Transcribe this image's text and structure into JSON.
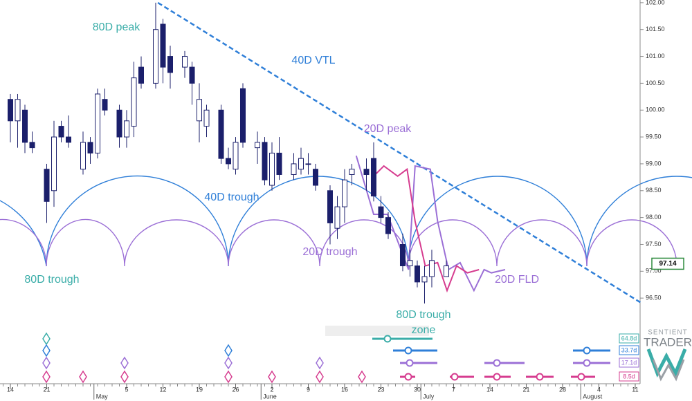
{
  "chart_data": {
    "type": "candlestick",
    "x": [
      0,
      1,
      2,
      3,
      5,
      6,
      7,
      8,
      10,
      11,
      12,
      13,
      15,
      16,
      17,
      18,
      20,
      21,
      22,
      24,
      25,
      26,
      27,
      29,
      30,
      31,
      32,
      34,
      35,
      36,
      37,
      39,
      40,
      41,
      42,
      44,
      45,
      46,
      47,
      49,
      50,
      51,
      52,
      54,
      55,
      56,
      57,
      58,
      60
    ],
    "open": [
      100.2,
      99.8,
      100.0,
      99.4,
      98.9,
      98.5,
      99.7,
      99.5,
      98.9,
      99.4,
      99.2,
      100.2,
      100.0,
      99.5,
      99.7,
      100.8,
      100.5,
      101.6,
      101.0,
      100.8,
      100.8,
      99.8,
      99.7,
      100.0,
      99.1,
      98.9,
      100.4,
      99.3,
      99.4,
      98.6,
      99.2,
      98.8,
      98.9,
      99.0,
      98.9,
      98.5,
      97.8,
      98.2,
      98.8,
      98.9,
      99.1,
      98.2,
      98.0,
      97.5,
      97.1,
      97.1,
      96.8,
      96.9,
      96.9
    ],
    "high": [
      100.3,
      100.3,
      100.1,
      99.6,
      99.0,
      99.8,
      99.8,
      99.9,
      99.6,
      99.5,
      100.4,
      100.4,
      100.1,
      100.0,
      100.9,
      101.0,
      102.0,
      101.7,
      101.2,
      101.1,
      100.9,
      100.5,
      100.1,
      100.1,
      99.3,
      99.5,
      100.5,
      99.6,
      99.5,
      99.4,
      99.5,
      99.2,
      99.3,
      99.2,
      99.0,
      98.6,
      98.4,
      98.9,
      99.0,
      99.1,
      99.4,
      98.4,
      98.1,
      97.7,
      97.4,
      97.2,
      97.1,
      97.4,
      97.2
    ],
    "low": [
      99.4,
      99.3,
      99.2,
      99.2,
      97.9,
      98.2,
      99.4,
      99.3,
      98.8,
      99.0,
      99.1,
      99.9,
      99.3,
      99.3,
      99.5,
      100.4,
      100.4,
      100.5,
      100.4,
      100.6,
      100.1,
      99.4,
      99.5,
      99.0,
      98.9,
      98.8,
      99.3,
      99.0,
      98.6,
      98.5,
      98.7,
      98.7,
      98.8,
      98.8,
      98.5,
      97.5,
      97.6,
      97.9,
      98.6,
      98.5,
      98.3,
      97.9,
      97.6,
      97.0,
      96.9,
      96.7,
      96.4,
      96.7,
      96.9
    ],
    "close": [
      99.8,
      100.2,
      99.4,
      99.3,
      98.3,
      99.5,
      99.5,
      99.4,
      99.4,
      99.2,
      100.3,
      100.0,
      99.5,
      99.8,
      100.6,
      100.5,
      101.5,
      100.8,
      100.7,
      101.0,
      100.5,
      100.2,
      100.0,
      99.1,
      99.0,
      99.4,
      99.4,
      99.4,
      98.7,
      99.2,
      98.8,
      99.0,
      99.1,
      99.0,
      98.6,
      97.9,
      98.2,
      98.7,
      98.9,
      98.8,
      98.4,
      98.0,
      97.7,
      97.1,
      97.2,
      96.8,
      96.9,
      97.2,
      97.1
    ],
    "up_color": "#ffffff",
    "down_color": "#1b1f6b",
    "lines": [
      {
        "color": "#2f7fd8",
        "dashed": true,
        "x": [
          20.3,
          86.7
        ],
        "values": [
          102.0,
          96.42
        ]
      },
      {
        "color": "#9b6fd6",
        "dashed": false,
        "x": [
          47.6,
          50,
          51.9,
          54.8,
          55.7,
          57.8,
          58.8,
          60.3,
          61.9,
          63.8,
          65.2,
          66.2,
          68.1
        ],
        "values": [
          99.15,
          98.06,
          98.06,
          97.03,
          98.96,
          98.9,
          97.93,
          97.03,
          97.16,
          96.64,
          97.03,
          96.97,
          97.03
        ]
      },
      {
        "color": "#d63c8f",
        "dashed": false,
        "x": [
          50,
          51.4,
          53.3,
          54.6,
          55.7,
          57.1,
          58.8,
          60.1,
          61.4,
          62.9,
          64.5
        ],
        "values": [
          98.77,
          98.96,
          98.77,
          98.9,
          97.93,
          97.1,
          97.16,
          96.64,
          97.1,
          96.97,
          97.03
        ]
      }
    ],
    "last_price": 97.14,
    "xlim": [
      -1.43,
      86.67
    ],
    "ylim": [
      96.0,
      102.05
    ],
    "yticks": [
      {
        "value": 96.5,
        "label": "96.50"
      },
      {
        "value": 97,
        "label": "97.00"
      },
      {
        "value": 97.5,
        "label": "97.50"
      },
      {
        "value": 98,
        "label": "98.00"
      },
      {
        "value": 98.5,
        "label": "98.50"
      },
      {
        "value": 99,
        "label": "99.00"
      },
      {
        "value": 99.5,
        "label": "99.50"
      },
      {
        "value": 100,
        "label": "100.00"
      },
      {
        "value": 100.5,
        "label": "100.50"
      },
      {
        "value": 101,
        "label": "101.00"
      },
      {
        "value": 101.5,
        "label": "101.50"
      },
      {
        "value": 102,
        "label": "102.00"
      }
    ],
    "xticks": [
      {
        "value": 0,
        "label": "14"
      },
      {
        "value": 5,
        "label": "21"
      },
      {
        "value": 16,
        "label": "5"
      },
      {
        "value": 21,
        "label": "12"
      },
      {
        "value": 26,
        "label": "19"
      },
      {
        "value": 31,
        "label": "26"
      },
      {
        "value": 36,
        "label": "2"
      },
      {
        "value": 41,
        "label": "9"
      },
      {
        "value": 46,
        "label": "16"
      },
      {
        "value": 51,
        "label": "23"
      },
      {
        "value": 56,
        "label": "30"
      },
      {
        "value": 61,
        "label": "7"
      },
      {
        "value": 66,
        "label": "14"
      },
      {
        "value": 71,
        "label": "21"
      },
      {
        "value": 76,
        "label": "28"
      },
      {
        "value": 81,
        "label": "4"
      },
      {
        "value": 86,
        "label": "11"
      }
    ],
    "months": [
      {
        "value": 11.5,
        "label": "May"
      },
      {
        "value": 34.5,
        "label": "June"
      },
      {
        "value": 56.5,
        "label": "July"
      },
      {
        "value": 78.5,
        "label": "August"
      }
    ],
    "annotations": [
      "80D peak",
      "40D VTL",
      "20D peak",
      "40D trough",
      "20D trough",
      "80D trough",
      "80D trough",
      "zone",
      "20D FLD"
    ],
    "cycles": [
      {
        "label": "64.8d",
        "color": "#3aada8"
      },
      {
        "label": "33.7d",
        "color": "#2f7fd8"
      },
      {
        "label": "17.1d",
        "color": "#9b6fd6"
      },
      {
        "label": "8.5d",
        "color": "#d63c8f"
      }
    ],
    "brand": [
      "SENTIENT",
      "TRADER"
    ]
  }
}
